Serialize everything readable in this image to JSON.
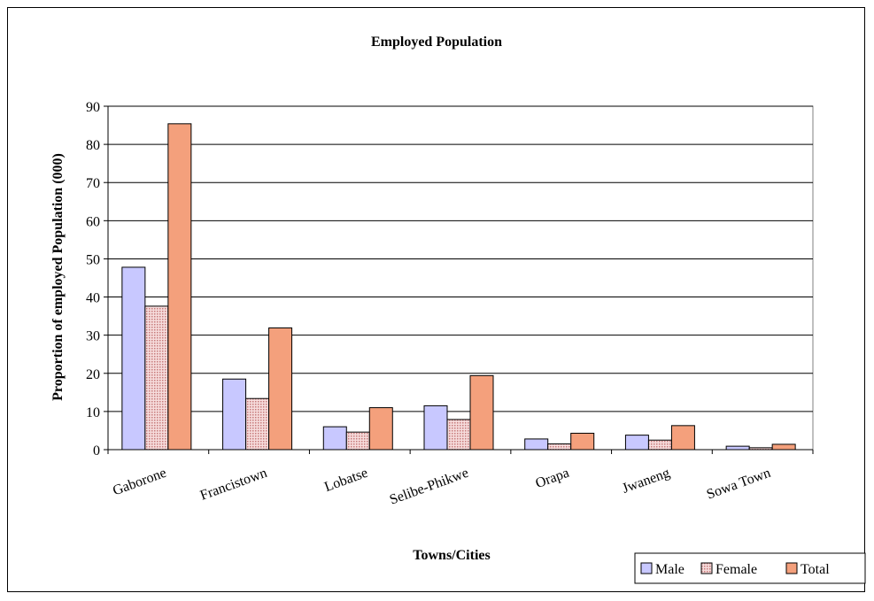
{
  "chart_data": {
    "type": "bar",
    "title": "Employed Population",
    "xlabel": "Towns/Cities",
    "ylabel": "Proportion of employed Population (000)",
    "categories": [
      "Gaborone",
      "Francistown",
      "Lobatse",
      "Selibe-Phikwe",
      "Orapa",
      "Jwaneng",
      "Sowa Town"
    ],
    "series": [
      {
        "name": "Male",
        "values": [
          47.8,
          18.5,
          6.0,
          11.5,
          2.8,
          3.8,
          0.9
        ],
        "color": "#c8c8ff",
        "pattern": "none"
      },
      {
        "name": "Female",
        "values": [
          37.6,
          13.4,
          4.6,
          7.9,
          1.5,
          2.5,
          0.5
        ],
        "color": "#f0c8c8",
        "pattern": "dots"
      },
      {
        "name": "Total",
        "values": [
          85.4,
          31.9,
          11.0,
          19.4,
          4.3,
          6.3,
          1.4
        ],
        "color": "#f4a07c",
        "pattern": "none"
      }
    ],
    "ylim": [
      0,
      90
    ],
    "yticks": [
      0,
      10,
      20,
      30,
      40,
      50,
      60,
      70,
      80,
      90
    ],
    "grid": true,
    "legend_position": "bottom-right"
  }
}
